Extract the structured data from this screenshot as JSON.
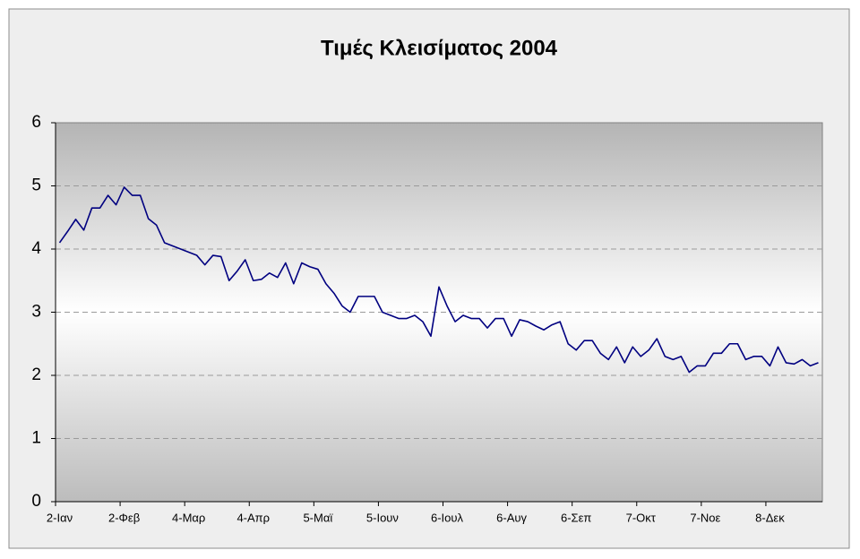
{
  "chart_data": {
    "type": "line",
    "title": "Τιμές Κλεισίματος 2004",
    "categories": [
      "2-Ιαν",
      null,
      null,
      null,
      null,
      null,
      null,
      null,
      "2-Φεβ",
      null,
      null,
      null,
      null,
      null,
      null,
      null,
      "4-Μαρ",
      null,
      null,
      null,
      null,
      null,
      null,
      null,
      "4-Απρ",
      null,
      null,
      null,
      null,
      null,
      null,
      null,
      "5-Μαϊ",
      null,
      null,
      null,
      null,
      null,
      null,
      null,
      "5-Ιουν",
      null,
      null,
      null,
      null,
      null,
      null,
      null,
      "6-Ιουλ",
      null,
      null,
      null,
      null,
      null,
      null,
      null,
      "6-Αυγ",
      null,
      null,
      null,
      null,
      null,
      null,
      null,
      "6-Σεπ",
      null,
      null,
      null,
      null,
      null,
      null,
      null,
      "7-Οκτ",
      null,
      null,
      null,
      null,
      null,
      null,
      null,
      "7-Νοε",
      null,
      null,
      null,
      null,
      null,
      null,
      null,
      "8-Δεκ",
      null,
      null,
      null,
      null,
      null,
      null
    ],
    "values": [
      4.1,
      4.28,
      4.47,
      4.3,
      4.65,
      4.65,
      4.85,
      4.7,
      4.98,
      4.85,
      4.85,
      4.48,
      4.38,
      4.1,
      4.05,
      4.0,
      3.95,
      3.9,
      3.75,
      3.9,
      3.88,
      3.5,
      3.65,
      3.83,
      3.5,
      3.52,
      3.62,
      3.55,
      3.78,
      3.45,
      3.78,
      3.72,
      3.68,
      3.45,
      3.3,
      3.1,
      3.0,
      3.25,
      3.25,
      3.25,
      3.0,
      2.95,
      2.9,
      2.9,
      2.95,
      2.85,
      2.62,
      3.4,
      3.1,
      2.85,
      2.95,
      2.9,
      2.9,
      2.75,
      2.9,
      2.9,
      2.62,
      2.88,
      2.85,
      2.78,
      2.72,
      2.8,
      2.85,
      2.5,
      2.4,
      2.55,
      2.55,
      2.35,
      2.25,
      2.45,
      2.2,
      2.45,
      2.3,
      2.4,
      2.58,
      2.3,
      2.25,
      2.3,
      2.05,
      2.15,
      2.15,
      2.35,
      2.35,
      2.5,
      2.5,
      2.25,
      2.3,
      2.3,
      2.15,
      2.45,
      2.2,
      2.18,
      2.25,
      2.15,
      2.2
    ],
    "color": "#000080",
    "ylim": [
      0,
      6
    ],
    "yticks": [
      0,
      1,
      2,
      3,
      4,
      5,
      6
    ],
    "grid": true
  }
}
